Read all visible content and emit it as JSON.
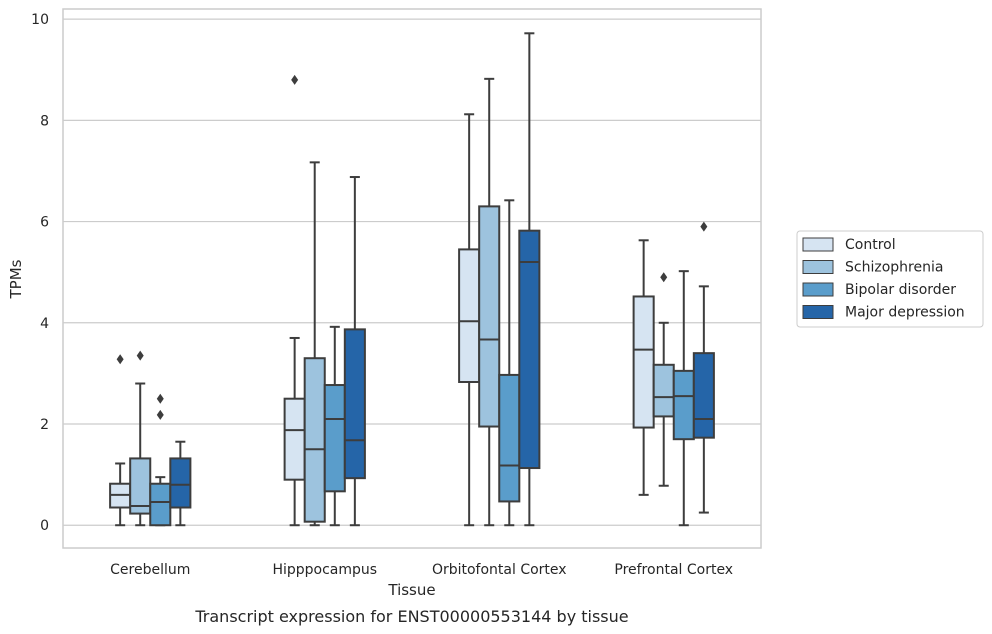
{
  "caption": "Transcript expression for ENST00000553144 by tissue",
  "chart_data": {
    "type": "box",
    "xlabel": "Tissue",
    "ylabel": "TPMs",
    "ylim": [
      -0.45,
      10.2
    ],
    "yticks": [
      "0",
      "2",
      "4",
      "6",
      "8",
      "10"
    ],
    "ytick_values": [
      0,
      2,
      4,
      6,
      8,
      10
    ],
    "grid": "horizontal",
    "legend_position": "right",
    "categories": [
      "Cerebellum",
      "Hipppocampus",
      "Orbitofontal Cortex",
      "Prefrontal Cortex"
    ],
    "series": [
      {
        "name": "Control",
        "color": "#d6e4f2",
        "boxes": [
          {
            "whisker_low": 0,
            "q1": 0.35,
            "median": 0.6,
            "q3": 0.82,
            "whisker_high": 1.22,
            "outliers": [
              3.28
            ]
          },
          {
            "whisker_low": 0,
            "q1": 0.9,
            "median": 1.88,
            "q3": 2.5,
            "whisker_high": 3.7,
            "outliers": [
              8.8
            ]
          },
          {
            "whisker_low": 0,
            "q1": 2.83,
            "median": 4.03,
            "q3": 5.45,
            "whisker_high": 8.12,
            "outliers": []
          },
          {
            "whisker_low": 0.6,
            "q1": 1.93,
            "median": 3.47,
            "q3": 4.52,
            "whisker_high": 5.63,
            "outliers": []
          }
        ]
      },
      {
        "name": "Schizophrenia",
        "color": "#9dc3de",
        "boxes": [
          {
            "whisker_low": 0,
            "q1": 0.23,
            "median": 0.38,
            "q3": 1.32,
            "whisker_high": 2.8,
            "outliers": [
              3.35
            ]
          },
          {
            "whisker_low": 0,
            "q1": 0.07,
            "median": 1.5,
            "q3": 3.3,
            "whisker_high": 7.17,
            "outliers": []
          },
          {
            "whisker_low": 0,
            "q1": 1.95,
            "median": 3.67,
            "q3": 6.3,
            "whisker_high": 8.82,
            "outliers": []
          },
          {
            "whisker_low": 0.78,
            "q1": 2.15,
            "median": 2.53,
            "q3": 3.17,
            "whisker_high": 4.0,
            "outliers": [
              4.9
            ]
          }
        ]
      },
      {
        "name": "Bipolar disorder",
        "color": "#5a9dcb",
        "boxes": [
          {
            "whisker_low": 0,
            "q1": 0.0,
            "median": 0.46,
            "q3": 0.82,
            "whisker_high": 0.95,
            "outliers": [
              2.18,
              2.5
            ]
          },
          {
            "whisker_low": 0,
            "q1": 0.67,
            "median": 2.1,
            "q3": 2.77,
            "whisker_high": 3.92,
            "outliers": []
          },
          {
            "whisker_low": 0,
            "q1": 0.47,
            "median": 1.18,
            "q3": 2.97,
            "whisker_high": 6.42,
            "outliers": []
          },
          {
            "whisker_low": 0,
            "q1": 1.7,
            "median": 2.55,
            "q3": 3.05,
            "whisker_high": 5.02,
            "outliers": []
          }
        ]
      },
      {
        "name": "Major depression",
        "color": "#2565a8",
        "boxes": [
          {
            "whisker_low": 0,
            "q1": 0.35,
            "median": 0.8,
            "q3": 1.32,
            "whisker_high": 1.65,
            "outliers": []
          },
          {
            "whisker_low": 0,
            "q1": 0.93,
            "median": 1.68,
            "q3": 3.87,
            "whisker_high": 6.88,
            "outliers": []
          },
          {
            "whisker_low": 0,
            "q1": 1.13,
            "median": 5.2,
            "q3": 5.82,
            "whisker_high": 9.72,
            "outliers": []
          },
          {
            "whisker_low": 0.25,
            "q1": 1.73,
            "median": 2.1,
            "q3": 3.4,
            "whisker_high": 4.72,
            "outliers": [
              5.9
            ]
          }
        ]
      }
    ]
  }
}
